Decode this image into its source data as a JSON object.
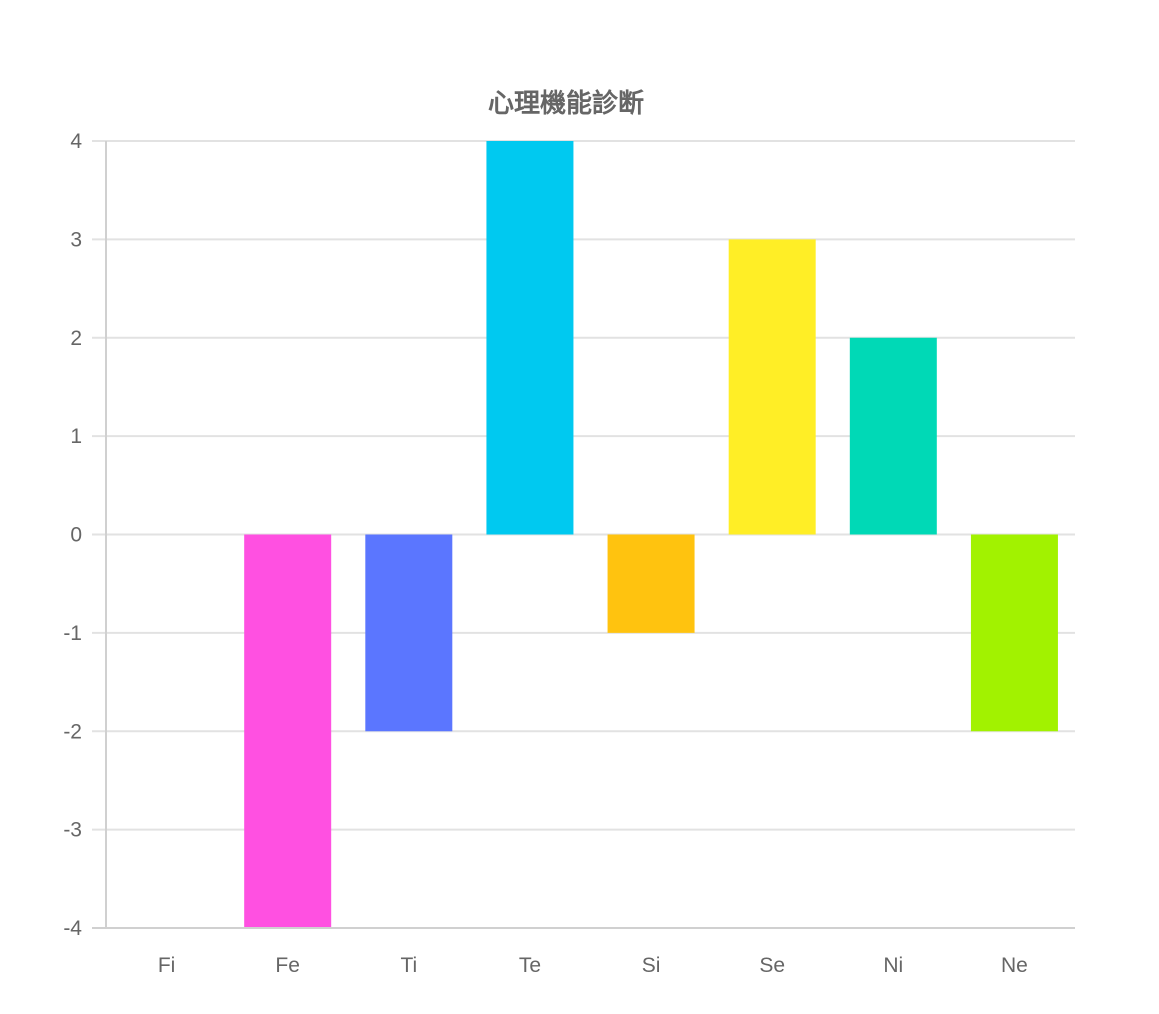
{
  "chart_data": {
    "type": "bar",
    "title": "心理機能診断",
    "xlabel": "",
    "ylabel": "",
    "categories": [
      "Fi",
      "Fe",
      "Ti",
      "Te",
      "Si",
      "Se",
      "Ni",
      "Ne"
    ],
    "values": [
      0,
      -4,
      -2,
      4,
      -1,
      3,
      2,
      -2
    ],
    "colors": [
      "#ff6384",
      "#ff50e1",
      "#5b76ff",
      "#00c9f0",
      "#ffc30f",
      "#ffee26",
      "#00d9b6",
      "#a2f200"
    ],
    "ylim": [
      -4,
      4
    ],
    "yticks": [
      "4",
      "3",
      "2",
      "1",
      "0",
      "-1",
      "-2",
      "-3",
      "-4"
    ],
    "grid": true,
    "legend": "none"
  }
}
